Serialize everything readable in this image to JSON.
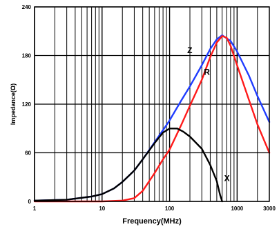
{
  "chart_data": {
    "type": "line",
    "xlabel": "Frequency(MHz)",
    "ylabel": "Impedance(Ω)",
    "x_scale": "log",
    "xlim": [
      1,
      3000
    ],
    "ylim": [
      0,
      240
    ],
    "grid": true,
    "x_ticks": [
      1,
      10,
      100,
      1000,
      3000
    ],
    "x_tick_labels": [
      "1",
      "10",
      "100",
      "1000",
      "3000"
    ],
    "y_ticks": [
      0,
      60,
      120,
      180,
      240
    ],
    "y_tick_labels": [
      "0",
      "60",
      "120",
      "180",
      "240"
    ],
    "series": [
      {
        "name": "Z",
        "color": "#1f3cff",
        "points": [
          [
            1,
            1
          ],
          [
            3,
            2
          ],
          [
            7,
            6
          ],
          [
            10,
            9
          ],
          [
            15,
            16
          ],
          [
            20,
            24
          ],
          [
            30,
            38
          ],
          [
            40,
            52
          ],
          [
            60,
            73
          ],
          [
            80,
            88
          ],
          [
            100,
            100
          ],
          [
            150,
            125
          ],
          [
            200,
            142
          ],
          [
            300,
            168
          ],
          [
            400,
            188
          ],
          [
            500,
            200
          ],
          [
            600,
            205
          ],
          [
            800,
            198
          ],
          [
            1000,
            185
          ],
          [
            1500,
            155
          ],
          [
            2000,
            130
          ],
          [
            3000,
            98
          ]
        ]
      },
      {
        "name": "R",
        "color": "#ff1a1a",
        "points": [
          [
            1,
            0
          ],
          [
            10,
            0
          ],
          [
            20,
            1
          ],
          [
            30,
            4
          ],
          [
            40,
            13
          ],
          [
            50,
            25
          ],
          [
            60,
            35
          ],
          [
            80,
            52
          ],
          [
            100,
            64
          ],
          [
            150,
            95
          ],
          [
            200,
            118
          ],
          [
            300,
            150
          ],
          [
            400,
            178
          ],
          [
            500,
            196
          ],
          [
            600,
            204
          ],
          [
            700,
            202
          ],
          [
            800,
            192
          ],
          [
            1000,
            168
          ],
          [
            1500,
            125
          ],
          [
            2000,
            95
          ],
          [
            3000,
            60
          ]
        ]
      },
      {
        "name": "X",
        "color": "#000000",
        "points": [
          [
            1,
            1
          ],
          [
            3,
            2
          ],
          [
            7,
            6
          ],
          [
            10,
            9
          ],
          [
            15,
            16
          ],
          [
            20,
            24
          ],
          [
            30,
            38
          ],
          [
            40,
            52
          ],
          [
            60,
            72
          ],
          [
            80,
            85
          ],
          [
            100,
            90
          ],
          [
            130,
            90
          ],
          [
            160,
            86
          ],
          [
            200,
            80
          ],
          [
            300,
            65
          ],
          [
            400,
            45
          ],
          [
            500,
            25
          ],
          [
            560,
            8
          ],
          [
            600,
            0
          ]
        ]
      }
    ]
  }
}
